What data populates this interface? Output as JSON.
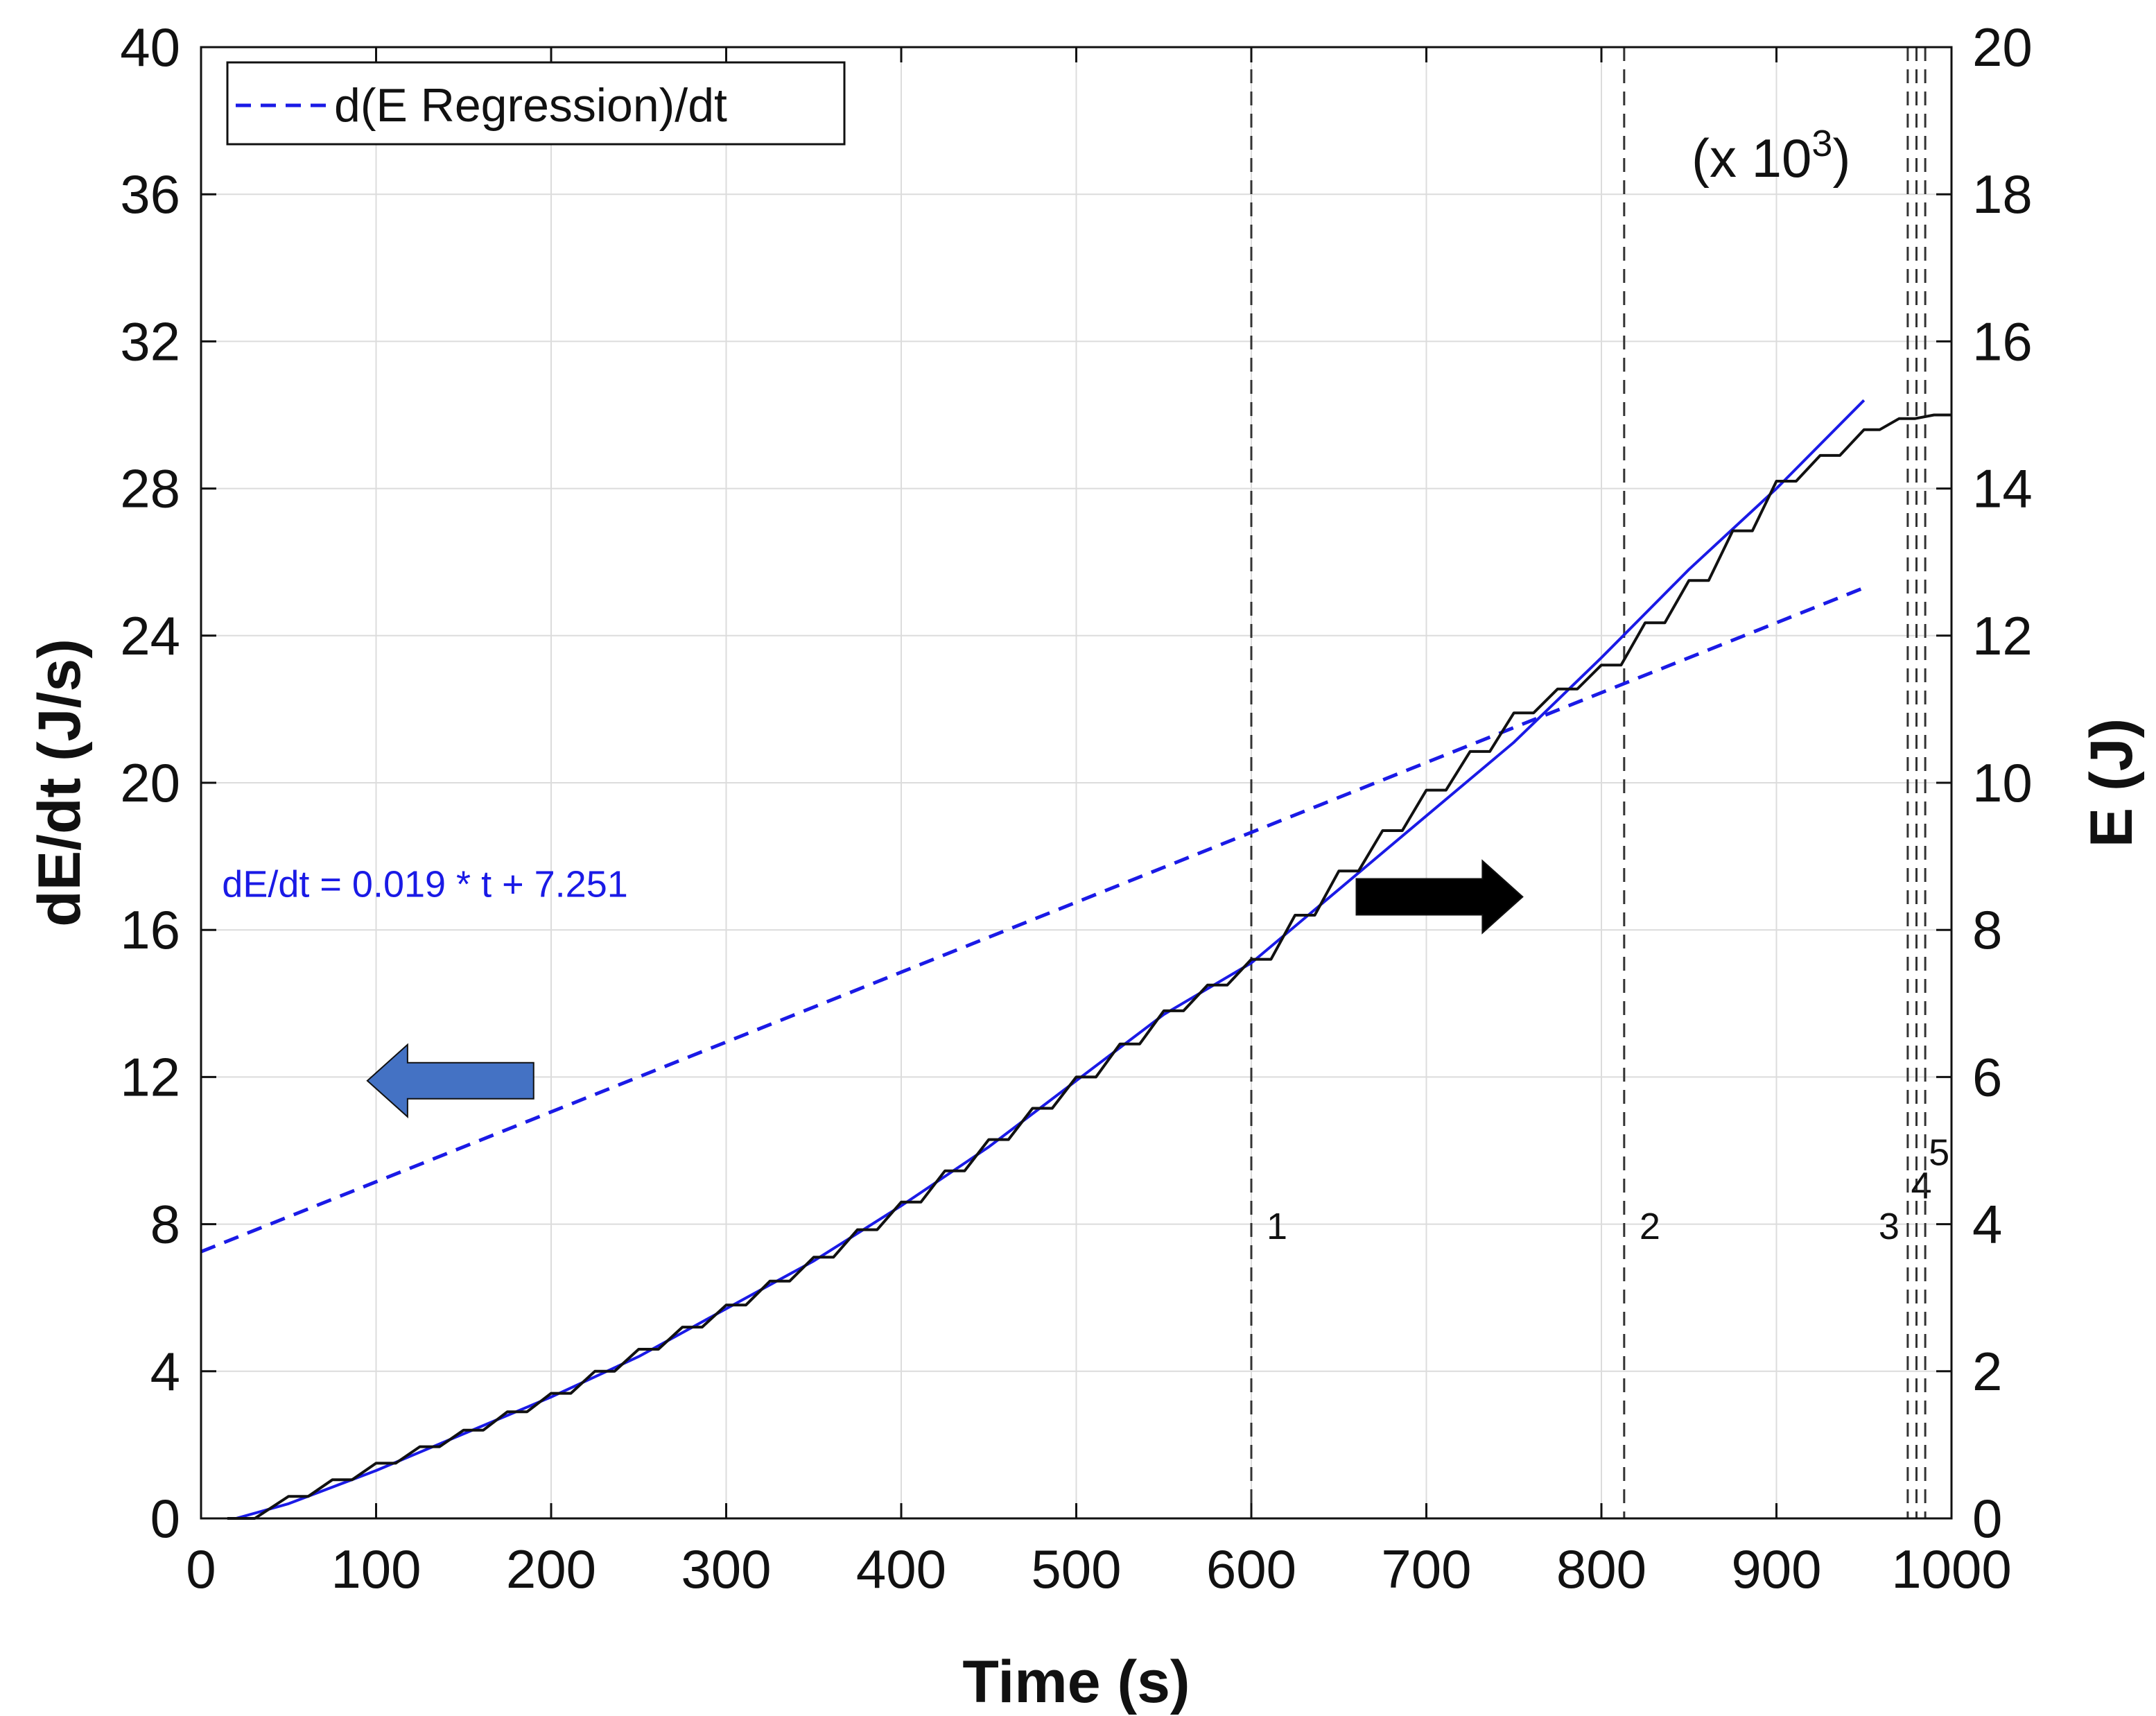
{
  "chart_data": {
    "type": "line",
    "xlabel": "Time (s)",
    "ylabel": "dE/dt (J/s)",
    "ylabel_right": "E (J)",
    "xlim": [
      0,
      1000
    ],
    "ylim": [
      0,
      40
    ],
    "ylim_right": [
      0,
      20
    ],
    "xticks": [
      0,
      100,
      200,
      300,
      400,
      500,
      600,
      700,
      800,
      900,
      1000
    ],
    "yticks": [
      0,
      4,
      8,
      12,
      16,
      20,
      24,
      28,
      32,
      36,
      40
    ],
    "yticks_right": [
      0,
      2,
      4,
      6,
      8,
      10,
      12,
      14,
      16,
      18,
      20
    ],
    "right_scale_note": "(x 10",
    "right_scale_exp": "3",
    "right_scale_close": ")",
    "grid": true,
    "legend": {
      "position": "top-left",
      "entries": [
        {
          "label": "d(E Regression)/dt",
          "color": "#1a1ae6",
          "style": "dashed"
        }
      ]
    },
    "series": [
      {
        "name": "d(E Regression)/dt",
        "axis": "left",
        "style": "dashed",
        "color": "#1a1ae6",
        "x": [
          0,
          950
        ],
        "y": [
          7.251,
          25.3
        ]
      },
      {
        "axis": "right",
        "style": "solid",
        "color": "#1a1ae6",
        "x": [
          20,
          50,
          100,
          150,
          200,
          250,
          300,
          350,
          400,
          450,
          500,
          550,
          600,
          650,
          700,
          750,
          800,
          850,
          900,
          950
        ],
        "y": [
          0.0,
          0.2,
          0.65,
          1.15,
          1.65,
          2.2,
          2.85,
          3.5,
          4.25,
          5.05,
          5.95,
          6.85,
          7.55,
          8.55,
          9.55,
          10.55,
          11.7,
          12.9,
          14.0,
          15.2
        ]
      },
      {
        "axis": "right",
        "style": "solid",
        "color": "#111111",
        "stepped": true,
        "x": [
          15,
          50,
          100,
          150,
          200,
          250,
          300,
          350,
          400,
          450,
          500,
          550,
          600,
          650,
          700,
          750,
          800,
          850,
          900,
          950,
          970,
          990,
          1000
        ],
        "y": [
          0.0,
          0.3,
          0.75,
          1.2,
          1.7,
          2.3,
          2.9,
          3.55,
          4.3,
          5.15,
          6.0,
          6.9,
          7.6,
          8.8,
          9.9,
          10.95,
          11.6,
          12.75,
          14.1,
          14.8,
          14.95,
          15.0,
          15.0
        ]
      }
    ],
    "vertical_markers": [
      {
        "label": "1",
        "x": 600
      },
      {
        "label": "2",
        "x": 813
      },
      {
        "label": "3",
        "x": 975
      },
      {
        "label": "4",
        "x": 980
      },
      {
        "label": "5",
        "x": 985
      }
    ],
    "annotations": [
      {
        "text": "dE/dt = 0.019 * t + 7.251",
        "x": 12,
        "y": 16.9,
        "color": "#1a1ae6"
      }
    ],
    "arrows": [
      {
        "direction": "left",
        "color": "#4472c4",
        "x": [
          95,
          190
        ],
        "y": 11.9
      },
      {
        "direction": "right",
        "color": "#000000",
        "x": [
          660,
          755
        ],
        "y": 16.9
      }
    ]
  }
}
